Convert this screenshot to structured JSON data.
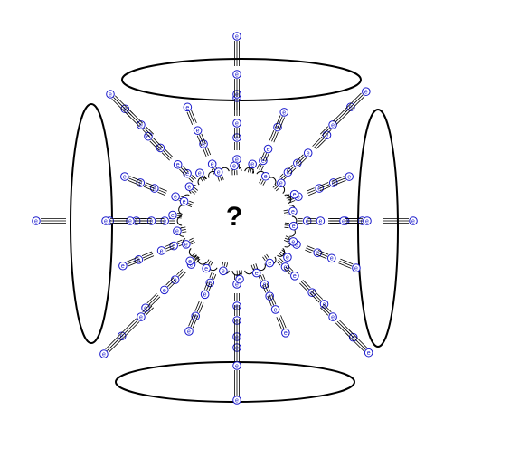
{
  "diagram": {
    "center_label": "?",
    "particle_label": "e",
    "colors": {
      "particle": "#1a1acc",
      "stroke": "#000000",
      "background": "#ffffff"
    },
    "icons": {
      "particle": "electron-icon",
      "detector_plate": "ellipse-plate-icon"
    },
    "plates": [
      "top-plate",
      "bottom-plate",
      "left-plate",
      "right-plate"
    ]
  }
}
